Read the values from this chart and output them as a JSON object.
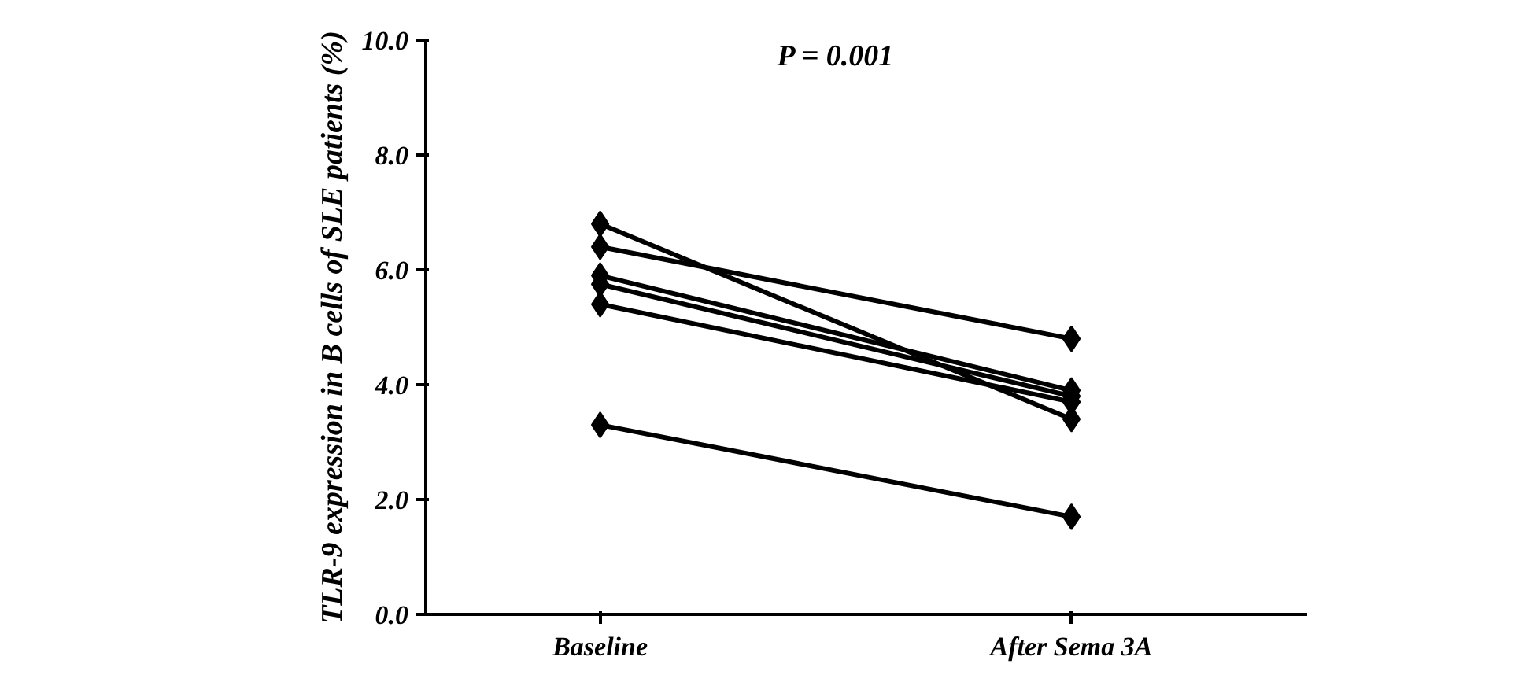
{
  "chart_data": {
    "type": "line",
    "categories": [
      "Baseline",
      "After Sema 3A"
    ],
    "ylabel": "TLR-9 expression in B cells of SLE patients (%)",
    "annotations": [
      "P = 0.001"
    ],
    "ylim": [
      0,
      10
    ],
    "yticks": [
      {
        "value": 0,
        "label": "0.0"
      },
      {
        "value": 2,
        "label": "2.0"
      },
      {
        "value": 4,
        "label": "4.0"
      },
      {
        "value": 6,
        "label": "6.0"
      },
      {
        "value": 8,
        "label": "8.0"
      },
      {
        "value": 10,
        "label": "10.0"
      }
    ],
    "grid": false,
    "marker": "diamond",
    "line_style": "solid",
    "series": [
      {
        "color": "#000000",
        "values": [
          6.8,
          3.4
        ]
      },
      {
        "color": "#000000",
        "values": [
          6.4,
          4.8
        ]
      },
      {
        "color": "#000000",
        "values": [
          5.9,
          3.9
        ]
      },
      {
        "color": "#000000",
        "values": [
          5.75,
          3.8
        ]
      },
      {
        "color": "#000000",
        "values": [
          5.4,
          3.7
        ]
      },
      {
        "color": "#000000",
        "values": [
          3.3,
          1.7
        ]
      }
    ]
  }
}
